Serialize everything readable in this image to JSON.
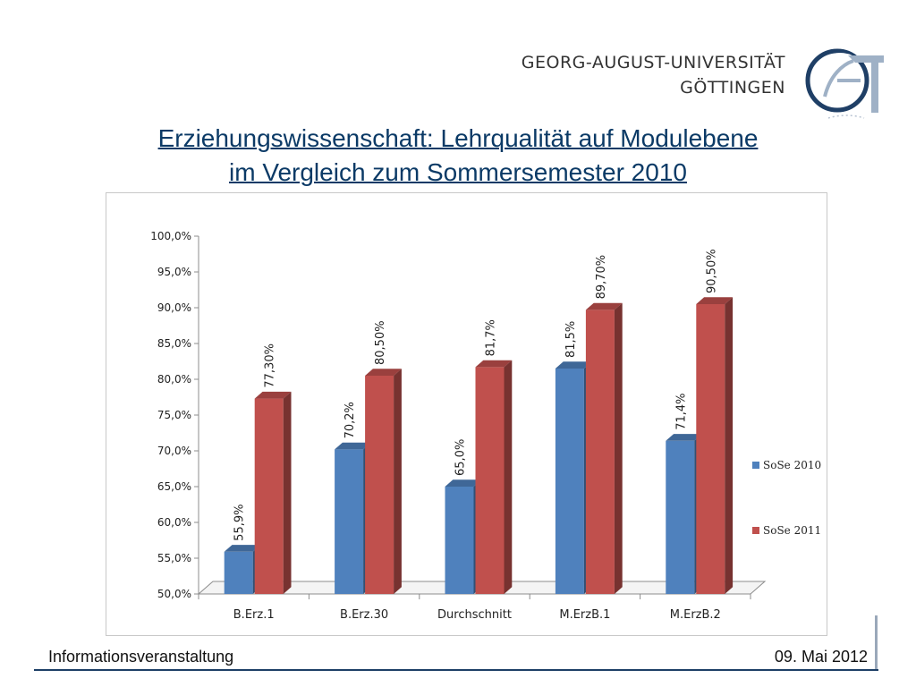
{
  "header": {
    "university_line1": "GEORG-AUGUST-UNIVERSITÄT",
    "university_line2": "GÖTTINGEN",
    "logo_icon": "university-seal-icon"
  },
  "title": {
    "line1": "Erziehungswissenschaft: Lehrqualität auf Modulebene",
    "line2": "im Vergleich zum Sommersemester 2010"
  },
  "footer": {
    "left": "Informationsveranstaltung",
    "right": "09. Mai 2012"
  },
  "chart_data": {
    "type": "bar",
    "categories": [
      "B.Erz.1",
      "B.Erz.30",
      "Durchschnitt",
      "M.ErzB.1",
      "M.ErzB.2"
    ],
    "series": [
      {
        "name": "SoSe 2010",
        "values": [
          55.9,
          70.2,
          65.0,
          81.5,
          71.4
        ],
        "labels": [
          "55,9%",
          "70,2%",
          "65,0%",
          "81,5%",
          "71,4%"
        ],
        "color": "#4f81bd"
      },
      {
        "name": "SoSe 2011",
        "values": [
          77.3,
          80.5,
          81.7,
          89.7,
          90.5
        ],
        "labels": [
          "77,30%",
          "80,50%",
          "81,7%",
          "89,70%",
          "90,50%"
        ],
        "color": "#c0504d"
      }
    ],
    "ylim": [
      50,
      100
    ],
    "yticks": [
      50,
      55,
      60,
      65,
      70,
      75,
      80,
      85,
      90,
      95,
      100
    ],
    "ytick_labels": [
      "50,0%",
      "55,0%",
      "60,0%",
      "65,0%",
      "70,0%",
      "75,0%",
      "80,0%",
      "85,0%",
      "90,0%",
      "95,0%",
      "100,0%"
    ],
    "legend_position": "right",
    "grid": false,
    "style": "3d-column"
  }
}
